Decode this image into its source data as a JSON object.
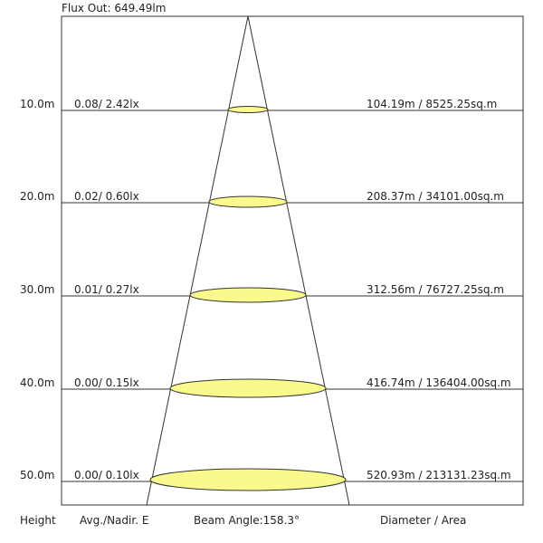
{
  "header": {
    "title": "Flux Out: 649.49lm"
  },
  "rows": [
    {
      "height": "10.0m",
      "illuminance": "0.08/ 2.42lx",
      "diameter_area": "104.19m / 8525.25sq.m"
    },
    {
      "height": "20.0m",
      "illuminance": "0.02/ 0.60lx",
      "diameter_area": "208.37m / 34101.00sq.m"
    },
    {
      "height": "30.0m",
      "illuminance": "0.01/ 0.27lx",
      "diameter_area": "312.56m / 76727.25sq.m"
    },
    {
      "height": "40.0m",
      "illuminance": "0.00/ 0.15lx",
      "diameter_area": "416.74m / 136404.00sq.m"
    },
    {
      "height": "50.0m",
      "illuminance": "0.00/ 0.10lx",
      "diameter_area": "520.93m / 213131.23sq.m"
    }
  ],
  "footer": {
    "height": "Height",
    "illuminance": "Avg./Nadir. E",
    "beam_angle": "Beam Angle:158.3°",
    "diameter_area": "Diameter / Area"
  }
}
